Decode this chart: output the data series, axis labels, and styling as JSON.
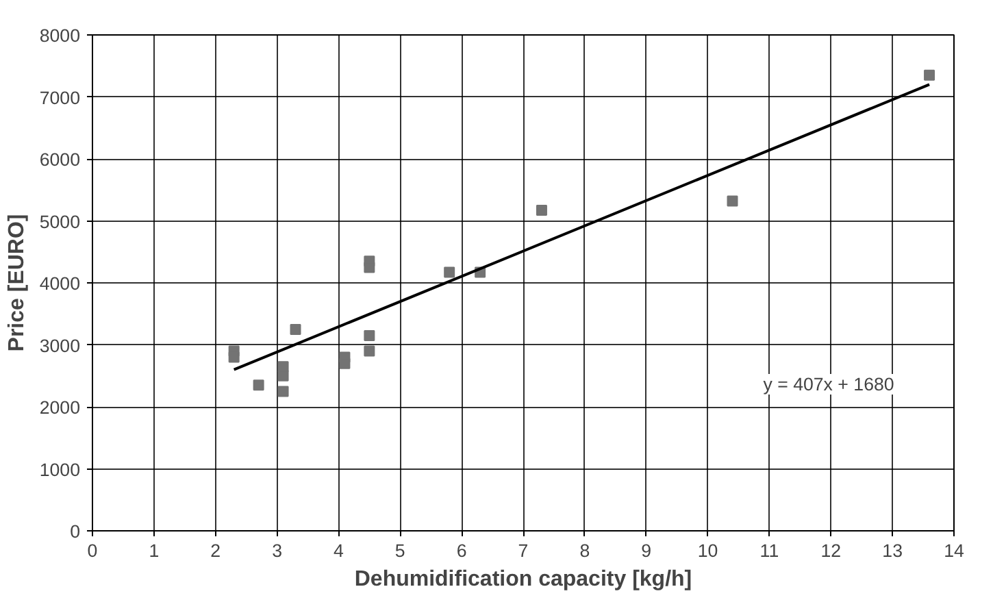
{
  "chart_data": {
    "type": "scatter",
    "xlabel": "Dehumidification capacity [kg/h]",
    "ylabel": "Price [EURO]",
    "xlim": [
      0,
      14
    ],
    "ylim": [
      0,
      8000
    ],
    "xticks": [
      0,
      1,
      2,
      3,
      4,
      5,
      6,
      7,
      8,
      9,
      10,
      11,
      12,
      13,
      14
    ],
    "yticks": [
      0,
      1000,
      2000,
      3000,
      4000,
      5000,
      6000,
      7000,
      8000
    ],
    "grid": true,
    "marker": "square",
    "annotations": [
      "y = 407x + 1680"
    ],
    "series": [
      {
        "color": "#737373",
        "x": [
          2.3,
          2.3,
          2.7,
          3.1,
          3.1,
          3.1,
          3.3,
          4.1,
          4.1,
          4.5,
          4.5,
          4.5,
          4.5,
          5.8,
          6.3,
          7.3,
          10.4,
          13.6
        ],
        "values": [
          2900,
          2800,
          2350,
          2650,
          2500,
          2250,
          3250,
          2800,
          2700,
          4350,
          4250,
          3150,
          2900,
          4170,
          4170,
          5170,
          5320,
          7350
        ]
      },
      {
        "type": "line",
        "marker": "none",
        "color": "#000000",
        "x": [
          2.3,
          13.6
        ],
        "values": [
          2600,
          7200
        ]
      }
    ]
  }
}
